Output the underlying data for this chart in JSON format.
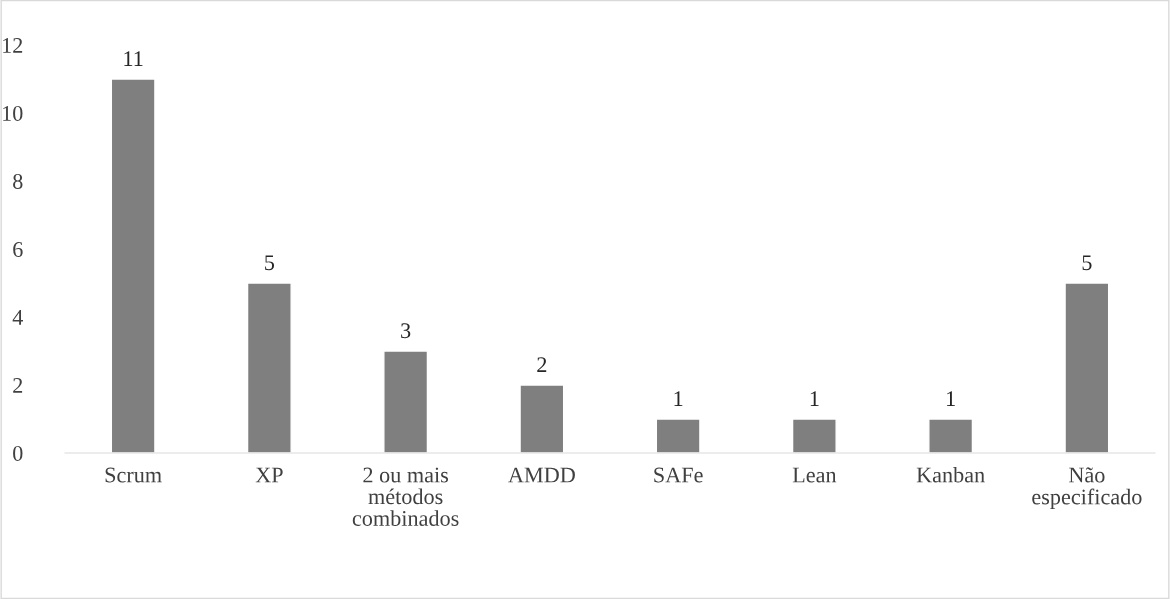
{
  "chart_data": {
    "type": "bar",
    "categories": [
      "Scrum",
      "XP",
      "2 ou mais\nmétodos\ncombinados",
      "AMDD",
      "SAFe",
      "Lean",
      "Kanban",
      "Não\nespecificado"
    ],
    "values": [
      11,
      5,
      3,
      2,
      1,
      1,
      1,
      5
    ],
    "color": "#7f7f7f",
    "ylim": [
      0,
      12
    ],
    "yticks": [
      0,
      2,
      4,
      6,
      8,
      10,
      12
    ],
    "grid": false,
    "data_labels": true
  }
}
